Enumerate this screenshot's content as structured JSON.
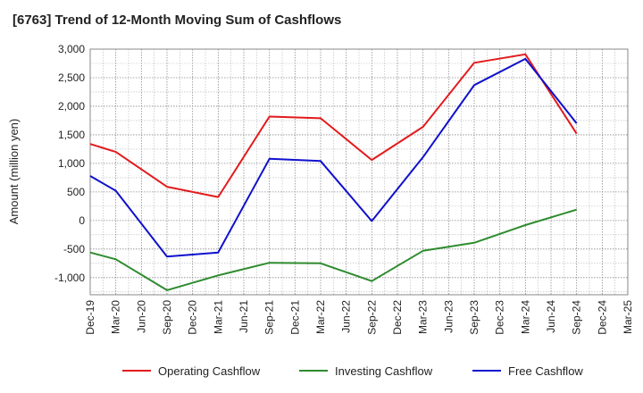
{
  "chart_data": {
    "type": "line",
    "title": "[6763]  Trend of 12-Month Moving Sum of Cashflows",
    "xlabel": "",
    "ylabel": "Amount (million yen)",
    "categories": [
      "Dec-19",
      "Mar-20",
      "Jun-20",
      "Sep-20",
      "Dec-20",
      "Mar-21",
      "Jun-21",
      "Sep-21",
      "Dec-21",
      "Mar-22",
      "Jun-22",
      "Sep-22",
      "Dec-22",
      "Mar-23",
      "Jun-23",
      "Sep-23",
      "Dec-23",
      "Mar-24",
      "Jun-24",
      "Sep-24",
      "Dec-24",
      "Mar-25"
    ],
    "ylim": [
      -1300,
      3000
    ],
    "yticks": [
      -1000,
      -500,
      0,
      500,
      1000,
      1500,
      2000,
      2500,
      3000
    ],
    "ytick_labels": [
      "-1,000",
      "-500",
      "0",
      "500",
      "1,000",
      "1,500",
      "2,000",
      "2,500",
      "3,000"
    ],
    "grid": true,
    "legend_position": "bottom",
    "series": [
      {
        "name": "Operating Cashflow",
        "color": "#e31a1c",
        "values": [
          1340,
          1200,
          null,
          590,
          null,
          410,
          null,
          1820,
          null,
          1790,
          null,
          1060,
          null,
          1640,
          null,
          2760,
          null,
          2910,
          null,
          1520,
          null,
          null
        ]
      },
      {
        "name": "Investing Cashflow",
        "color": "#2e8b2e",
        "values": [
          -560,
          -680,
          null,
          -1220,
          null,
          -960,
          null,
          -740,
          null,
          -750,
          null,
          -1060,
          null,
          -530,
          null,
          -390,
          null,
          -80,
          null,
          190,
          null,
          null
        ]
      },
      {
        "name": "Free Cashflow",
        "color": "#1010cc",
        "values": [
          780,
          520,
          null,
          -630,
          null,
          -560,
          null,
          1080,
          null,
          1040,
          null,
          -10,
          null,
          1110,
          null,
          2370,
          null,
          2830,
          null,
          1700,
          null,
          null
        ]
      }
    ]
  }
}
